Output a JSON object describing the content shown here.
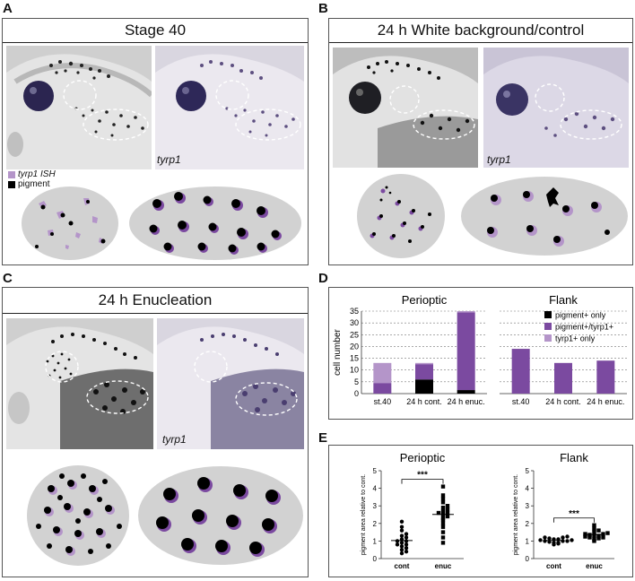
{
  "panels": {
    "A": {
      "letter": "A",
      "title": "Stage 40",
      "tyrp1": "tyrp1",
      "legend_ish": "tyrp1 ISH",
      "legend_pigment": "pigment"
    },
    "B": {
      "letter": "B",
      "title": "24 h White background/control",
      "tyrp1": "tyrp1"
    },
    "C": {
      "letter": "C",
      "title": "24 h Enucleation",
      "tyrp1": "tyrp1"
    },
    "D": {
      "letter": "D"
    },
    "E": {
      "letter": "E"
    }
  },
  "colors": {
    "pigment": "#000000",
    "pigment_tyrp1": "#7b4aa0",
    "tyrp1_only": "#b495c9",
    "schematic_bg": "#d2d2d2"
  },
  "chart_data": [
    {
      "type": "bar",
      "id": "D-perioptic",
      "title": "Perioptic",
      "ylabel": "cell number",
      "categories": [
        "st.40",
        "24 h cont.",
        "24 h enuc."
      ],
      "ylim": [
        0,
        35
      ],
      "yticks": [
        0,
        5,
        10,
        15,
        20,
        25,
        30,
        35
      ],
      "stacked": true,
      "series": [
        {
          "name": "pigment+ only",
          "values": [
            0,
            6,
            1.5
          ]
        },
        {
          "name": "pigment+/tyrp1+",
          "values": [
            4.5,
            6.5,
            33
          ]
        },
        {
          "name": "tyrp1+ only",
          "values": [
            8.5,
            0.5,
            0.5
          ]
        }
      ]
    },
    {
      "type": "bar",
      "id": "D-flank",
      "title": "Flank",
      "categories": [
        "st.40",
        "24 h cont.",
        "24 h enuc."
      ],
      "ylim": [
        0,
        35
      ],
      "stacked": true,
      "legend": [
        "pigment+ only",
        "pigment+/tyrp1+",
        "tyrp1+ only"
      ],
      "series": [
        {
          "name": "pigment+ only",
          "values": [
            0,
            0,
            0
          ]
        },
        {
          "name": "pigment+/tyrp1+",
          "values": [
            19,
            13,
            14
          ]
        },
        {
          "name": "tyrp1+ only",
          "values": [
            0,
            0,
            0
          ]
        }
      ]
    },
    {
      "type": "scatter",
      "id": "E-perioptic",
      "title": "Perioptic",
      "ylabel": "pigment area relative to cont.",
      "categories": [
        "cont",
        "enuc"
      ],
      "ylim": [
        0,
        5
      ],
      "yticks": [
        0,
        1,
        2,
        3,
        4,
        5
      ],
      "significance": "***",
      "groups": [
        {
          "name": "cont",
          "marker": "circle",
          "values": [
            0.3,
            0.4,
            0.5,
            0.6,
            0.7,
            0.8,
            0.8,
            0.9,
            1.0,
            1.0,
            1.1,
            1.2,
            1.3,
            1.4,
            1.6,
            1.8,
            2.1
          ]
        },
        {
          "name": "enuc",
          "marker": "square",
          "values": [
            0.9,
            1.2,
            1.5,
            1.8,
            2.0,
            2.2,
            2.3,
            2.4,
            2.5,
            2.6,
            2.6,
            2.7,
            2.8,
            2.9,
            3.0,
            3.2,
            3.4,
            3.6,
            4.1
          ]
        }
      ]
    },
    {
      "type": "scatter",
      "id": "E-flank",
      "title": "Flank",
      "ylabel": "pigment area relative to cont.",
      "categories": [
        "cont",
        "enuc"
      ],
      "ylim": [
        0,
        5
      ],
      "yticks": [
        0,
        1,
        2,
        3,
        4,
        5
      ],
      "significance": "***",
      "groups": [
        {
          "name": "cont",
          "marker": "circle",
          "values": [
            0.8,
            0.85,
            0.9,
            0.9,
            0.95,
            1.0,
            1.0,
            1.0,
            1.05,
            1.05,
            1.1,
            1.1,
            1.15,
            1.2,
            1.2,
            1.25
          ]
        },
        {
          "name": "enuc",
          "marker": "square",
          "values": [
            1.0,
            1.1,
            1.15,
            1.2,
            1.2,
            1.25,
            1.3,
            1.3,
            1.35,
            1.4,
            1.4,
            1.45,
            1.5,
            1.6,
            1.7,
            1.9
          ]
        }
      ]
    }
  ]
}
